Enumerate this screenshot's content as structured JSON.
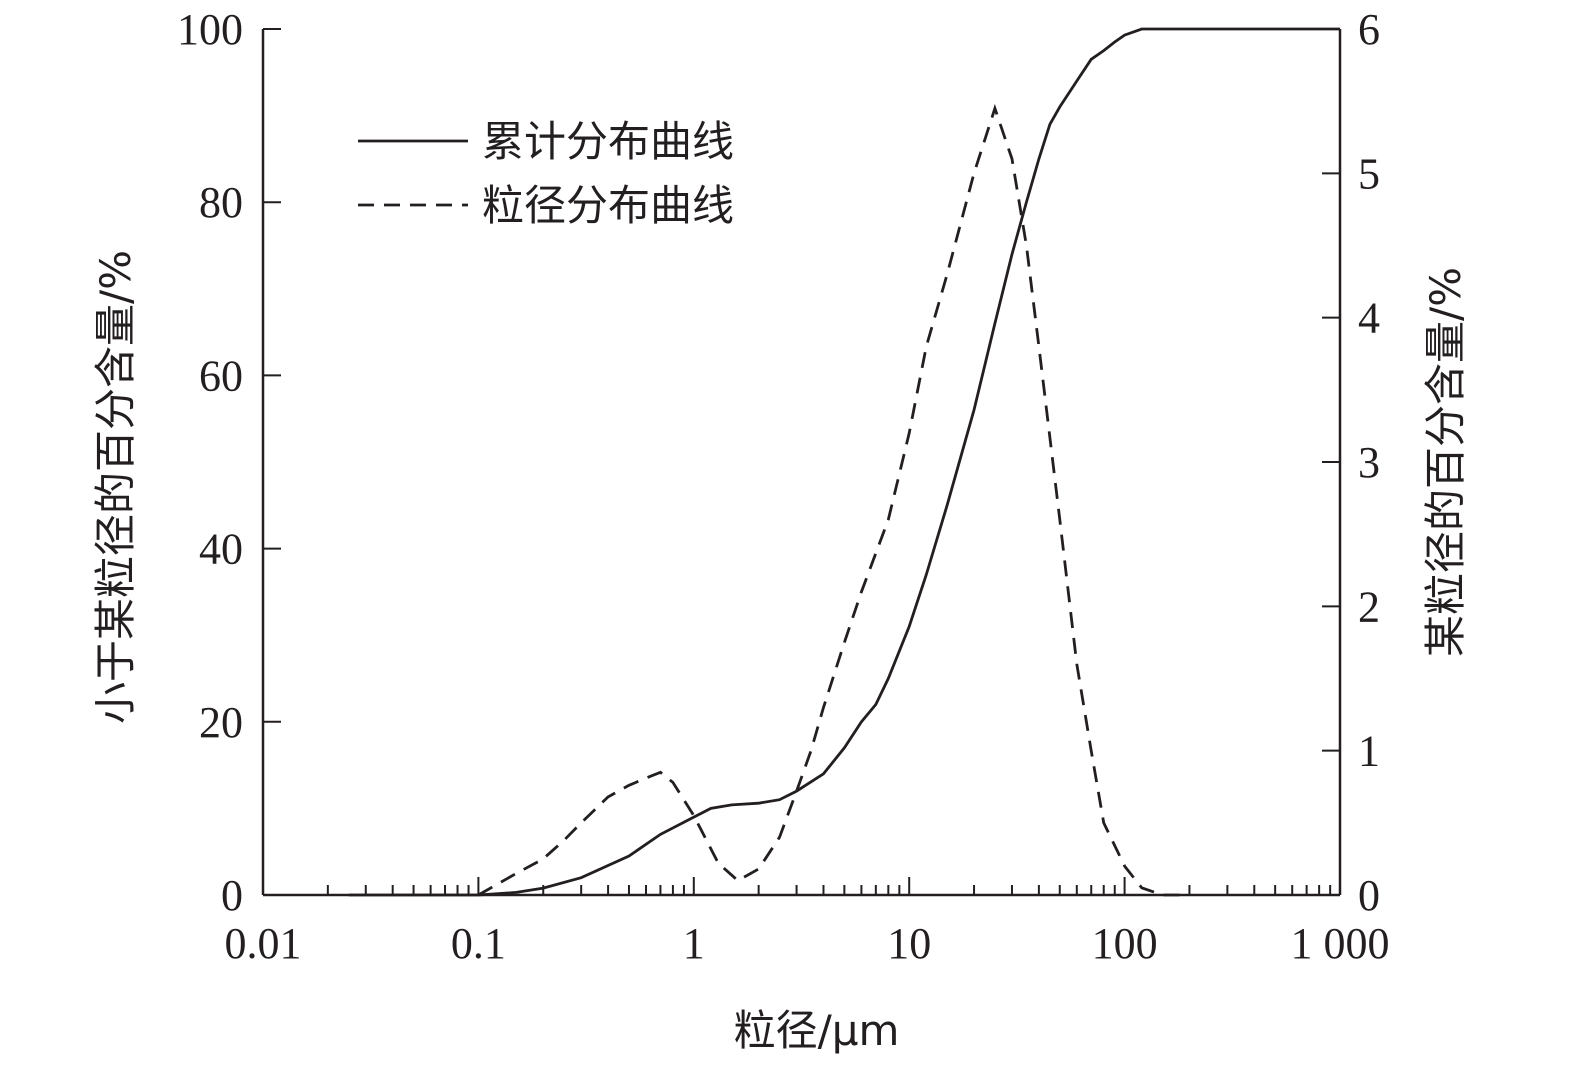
{
  "chart_data": {
    "type": "line",
    "title": "",
    "xlabel": "粒径/μm",
    "ylabel_left": "小于某粒径的百分含量/%",
    "ylabel_right": "某粒径的百分含量/%",
    "x_scale": "log",
    "xlim": [
      0.01,
      1000
    ],
    "ylim_left": [
      0,
      100
    ],
    "ylim_right": [
      0,
      6
    ],
    "x_ticks": [
      0.01,
      0.1,
      1,
      10,
      100,
      1000
    ],
    "x_tick_labels": [
      "0.01",
      "0.1",
      "1",
      "10",
      "100",
      "1 000"
    ],
    "y_left_ticks": [
      0,
      20,
      40,
      60,
      80,
      100
    ],
    "y_left_tick_labels": [
      "0",
      "20",
      "40",
      "60",
      "80",
      "100"
    ],
    "y_right_ticks": [
      0,
      1,
      2,
      3,
      4,
      5,
      6
    ],
    "y_right_tick_labels": [
      "0",
      "1",
      "2",
      "3",
      "4",
      "5",
      "6"
    ],
    "grid": false,
    "legend_position": "top-left",
    "series": [
      {
        "name": "累计分布曲线",
        "axis": "left",
        "style": "solid",
        "x": [
          0.025,
          0.1,
          0.15,
          0.2,
          0.3,
          0.5,
          0.7,
          1.0,
          1.2,
          1.5,
          2.0,
          2.5,
          3.0,
          4.0,
          5.0,
          6.0,
          7.0,
          8.0,
          10.0,
          12.0,
          15.0,
          20.0,
          25.0,
          30.0,
          35.0,
          40.0,
          45.0,
          50.0,
          60.0,
          70.0,
          80.0,
          90.0,
          100.0,
          120.0,
          150.0,
          200.0,
          500.0,
          1000.0
        ],
        "y": [
          0,
          0,
          0.3,
          0.8,
          2.0,
          4.5,
          7.0,
          9.0,
          10.0,
          10.4,
          10.6,
          11.0,
          12.0,
          14.0,
          17.0,
          20.0,
          22.0,
          25.0,
          31.0,
          37.0,
          45.0,
          56.0,
          66.0,
          74.0,
          80.0,
          85.0,
          89.0,
          91.0,
          94.0,
          96.5,
          97.5,
          98.5,
          99.3,
          100,
          100,
          100,
          100,
          100
        ]
      },
      {
        "name": "粒径分布曲线",
        "axis": "right",
        "style": "dashed",
        "x": [
          0.1,
          0.15,
          0.2,
          0.25,
          0.3,
          0.4,
          0.5,
          0.6,
          0.7,
          0.8,
          1.0,
          1.3,
          1.6,
          2.0,
          2.5,
          3.0,
          3.5,
          4.0,
          5.0,
          6.0,
          8.0,
          10.0,
          12.0,
          15.0,
          20.0,
          25.0,
          30.0,
          35.0,
          40.0,
          50.0,
          60.0,
          70.0,
          80.0,
          100.0,
          120.0,
          150.0,
          180.0
        ],
        "y": [
          0,
          0.15,
          0.25,
          0.38,
          0.5,
          0.68,
          0.76,
          0.81,
          0.85,
          0.78,
          0.55,
          0.22,
          0.1,
          0.18,
          0.4,
          0.72,
          1.0,
          1.3,
          1.75,
          2.1,
          2.6,
          3.2,
          3.8,
          4.3,
          5.0,
          5.45,
          5.1,
          4.5,
          3.8,
          2.6,
          1.6,
          1.0,
          0.5,
          0.2,
          0.05,
          0.0,
          0.0
        ]
      }
    ]
  }
}
